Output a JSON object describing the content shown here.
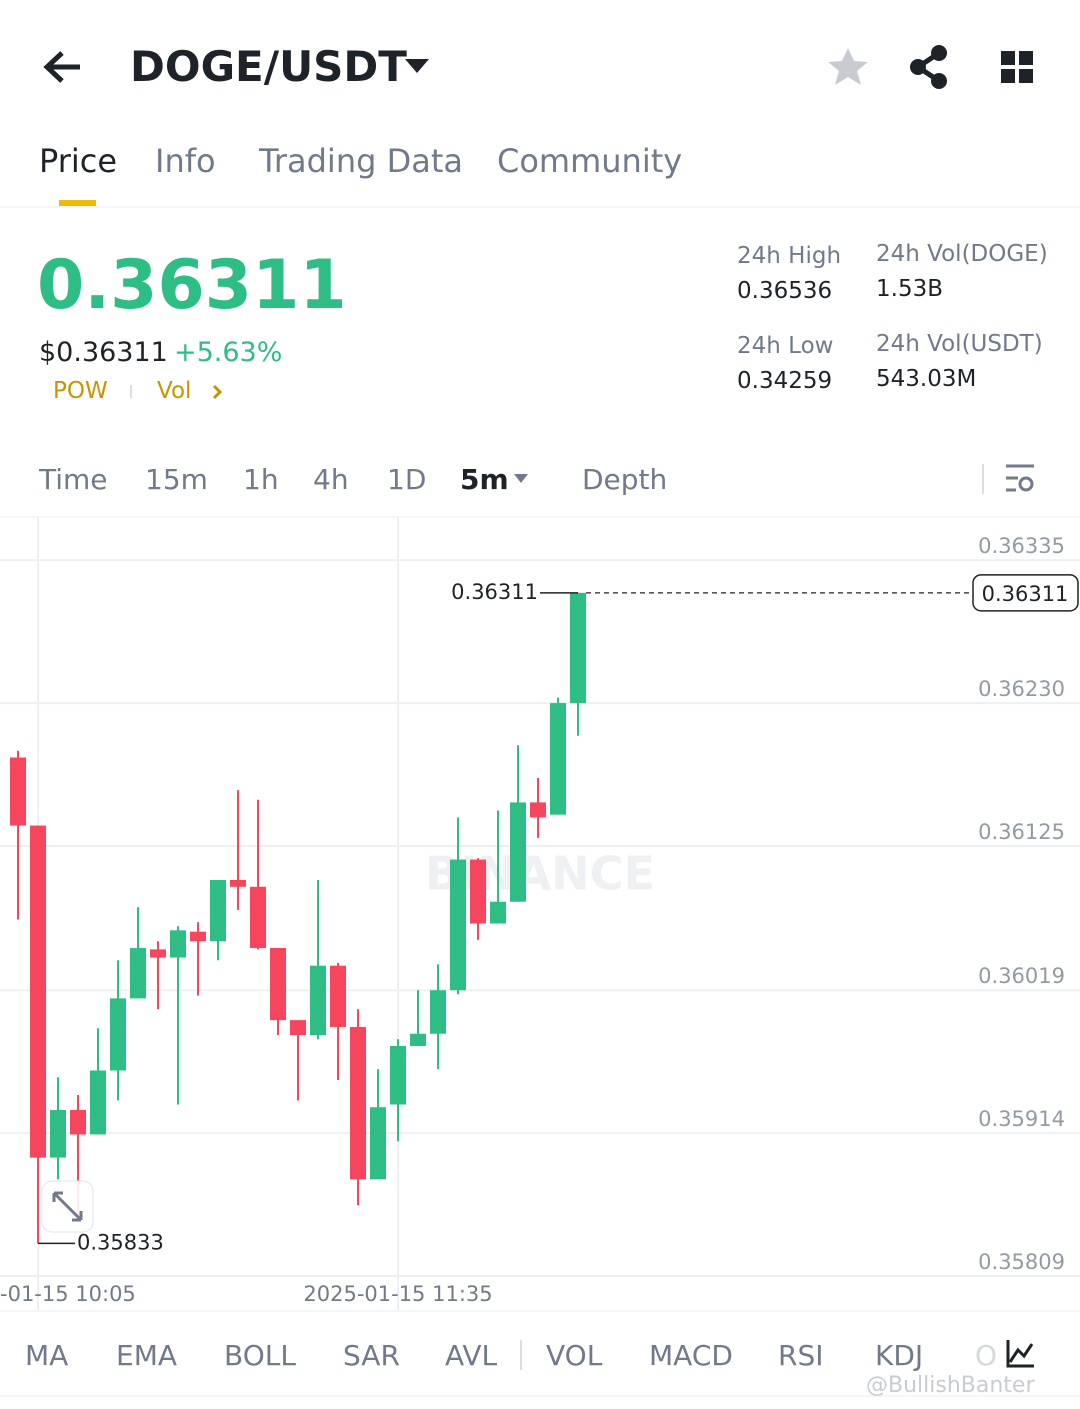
{
  "header": {
    "pair": "DOGE/USDT"
  },
  "tabs": [
    "Price",
    "Info",
    "Trading Data",
    "Community"
  ],
  "ticker": {
    "price": "0.36311",
    "usd_price": "$0.36311",
    "change": "+5.63%",
    "tags": [
      "POW",
      "Vol"
    ]
  },
  "stats": [
    {
      "label": "24h High",
      "value": "0.36536"
    },
    {
      "label": "24h Vol(DOGE)",
      "value": "1.53B"
    },
    {
      "label": "24h Low",
      "value": "0.34259"
    },
    {
      "label": "24h Vol(USDT)",
      "value": "543.03M"
    }
  ],
  "intervals": [
    "Time",
    "15m",
    "1h",
    "4h",
    "1D",
    "5m",
    "Depth"
  ],
  "indicators": [
    "MA",
    "EMA",
    "BOLL",
    "SAR",
    "AVL",
    "VOL",
    "MACD",
    "RSI",
    "KDJ",
    "O"
  ],
  "watermark": "BINANCE",
  "credit": "@BullishBanter",
  "chart_data": {
    "type": "candlestick",
    "up_color": "#2ebd85",
    "down_color": "#f6465d",
    "grid": true,
    "categories": [
      null,
      "-01-15 10:05",
      null,
      null,
      null,
      null,
      null,
      null,
      null,
      null,
      null,
      null,
      null,
      null,
      null,
      null,
      null,
      null,
      null,
      "2025-01-15 11:35",
      null,
      null,
      null,
      null,
      null,
      null,
      null,
      null,
      null
    ],
    "open": [
      0.3619,
      0.3614,
      0.35896,
      0.35931,
      0.35913,
      0.3596,
      0.36013,
      0.36049,
      0.36043,
      0.36062,
      0.36055,
      0.361,
      0.36095,
      0.3605,
      0.35997,
      0.35986,
      0.36037,
      0.35992,
      0.3588,
      0.35935,
      0.35978,
      0.35987,
      0.36019,
      0.36115,
      0.36068,
      0.36084,
      0.36157,
      0.36148,
      0.3623
    ],
    "high": [
      0.36195,
      0.3614,
      0.35955,
      0.35942,
      0.35991,
      0.36041,
      0.3608,
      0.36055,
      0.36066,
      0.36069,
      0.361,
      0.36166,
      0.36159,
      0.3605,
      0.35997,
      0.361,
      0.36039,
      0.36005,
      0.35961,
      0.35983,
      0.36019,
      0.36038,
      0.36146,
      0.36116,
      0.36151,
      0.36199,
      0.36175,
      0.36234,
      0.36311
    ],
    "low": [
      0.36071,
      0.35833,
      0.3588,
      0.3585,
      0.35913,
      0.35938,
      0.36013,
      0.36005,
      0.35935,
      0.36015,
      0.36041,
      0.36078,
      0.36049,
      0.35986,
      0.35938,
      0.35983,
      0.35953,
      0.35861,
      0.3588,
      0.35908,
      0.35978,
      0.35961,
      0.36016,
      0.36056,
      0.36068,
      0.36084,
      0.36131,
      0.36148,
      0.36206
    ],
    "close": [
      0.3614,
      0.35896,
      0.35931,
      0.35913,
      0.3596,
      0.36013,
      0.3605,
      0.36043,
      0.36063,
      0.36055,
      0.361,
      0.36095,
      0.3605,
      0.35997,
      0.35986,
      0.36037,
      0.35992,
      0.3588,
      0.35933,
      0.35978,
      0.35987,
      0.36019,
      0.36115,
      0.36068,
      0.36084,
      0.36157,
      0.36146,
      0.3623,
      0.36311
    ],
    "ylim": [
      0.35784,
      0.36366
    ],
    "yticks": [
      0.36335,
      {
        "value": 0.3623,
        "label": "0.36230"
      },
      0.36125,
      0.36019,
      0.35914,
      0.35809
    ],
    "max_label": 0.36311,
    "min_label": 0.35833,
    "last_price": 0.36311
  }
}
